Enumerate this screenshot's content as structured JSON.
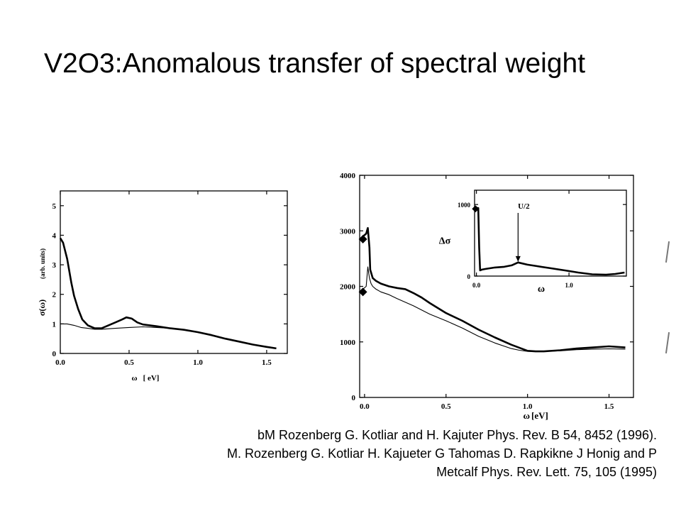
{
  "title": "V2O3:Anomalous transfer of spectral weight",
  "citation": {
    "lines": [
      "bM Rozenberg G. Kotliar and H. Kajuter Phys. Rev. B 54, 8452 (1996).",
      "M. Rozenberg G. Kotliar H. Kajueter G Tahomas D. Rapkikne J Honig and P",
      "Metcalf Phys. Rev. Lett. 75, 105 (1995)"
    ]
  },
  "chart_data": [
    {
      "id": "left",
      "type": "line",
      "xlabel_parts": [
        "ω",
        "[ eV]"
      ],
      "ylabel_parts": [
        "σ(ω)",
        "(arb. units)"
      ],
      "xlim": [
        0,
        1.65
      ],
      "ylim": [
        0,
        5.5
      ],
      "xticks": [
        0.0,
        0.5,
        1.0,
        1.5
      ],
      "xtick_labels": [
        "0.0",
        "0.5",
        "1.0",
        "1.5"
      ],
      "yticks": [
        0,
        1,
        2,
        3,
        4,
        5
      ],
      "ytick_labels": [
        "0",
        "1",
        "2",
        "3",
        "4",
        "5"
      ],
      "series": [
        {
          "style": "thick",
          "x": [
            0.0,
            0.02,
            0.05,
            0.08,
            0.1,
            0.13,
            0.16,
            0.2,
            0.25,
            0.3,
            0.35,
            0.4,
            0.45,
            0.48,
            0.52,
            0.56,
            0.6,
            0.7,
            0.8,
            0.9,
            1.0,
            1.1,
            1.2,
            1.3,
            1.4,
            1.5,
            1.57
          ],
          "y": [
            3.9,
            3.75,
            3.2,
            2.4,
            1.95,
            1.5,
            1.15,
            0.95,
            0.85,
            0.85,
            0.95,
            1.05,
            1.15,
            1.22,
            1.18,
            1.05,
            0.98,
            0.92,
            0.85,
            0.8,
            0.72,
            0.62,
            0.5,
            0.4,
            0.3,
            0.22,
            0.17
          ]
        },
        {
          "style": "thin",
          "x": [
            0.0,
            0.05,
            0.1,
            0.15,
            0.2,
            0.25,
            0.3,
            0.4,
            0.5,
            0.6,
            0.7,
            0.8,
            0.9,
            1.0,
            1.1,
            1.2,
            1.3,
            1.4,
            1.5,
            1.57
          ],
          "y": [
            1.0,
            1.0,
            0.95,
            0.88,
            0.85,
            0.82,
            0.82,
            0.85,
            0.88,
            0.9,
            0.88,
            0.85,
            0.8,
            0.72,
            0.62,
            0.5,
            0.4,
            0.3,
            0.22,
            0.17
          ]
        }
      ]
    },
    {
      "id": "right",
      "type": "line",
      "xlabel_parts": [
        "ω",
        "[eV]"
      ],
      "xlim": [
        -0.03,
        1.65
      ],
      "ylim": [
        0,
        4000
      ],
      "xticks": [
        0.0,
        0.5,
        1.0,
        1.5
      ],
      "xtick_labels": [
        "0.0",
        "0.5",
        "1.0",
        "1.5"
      ],
      "yticks": [
        0,
        1000,
        2000,
        3000,
        4000
      ],
      "ytick_labels": [
        "0",
        "1000",
        "2000",
        "3000",
        "4000"
      ],
      "markers": [
        {
          "x": -0.01,
          "y": 2850
        },
        {
          "x": -0.01,
          "y": 1900
        }
      ],
      "series": [
        {
          "style": "thick",
          "x": [
            -0.01,
            0.01,
            0.02,
            0.03,
            0.035,
            0.05,
            0.07,
            0.1,
            0.15,
            0.2,
            0.25,
            0.3,
            0.35,
            0.4,
            0.5,
            0.6,
            0.7,
            0.8,
            0.9,
            1.0,
            1.05,
            1.1,
            1.2,
            1.3,
            1.4,
            1.5,
            1.6
          ],
          "y": [
            2900,
            2950,
            3050,
            2700,
            2300,
            2150,
            2100,
            2050,
            2000,
            1970,
            1950,
            1880,
            1800,
            1700,
            1520,
            1380,
            1220,
            1080,
            950,
            840,
            830,
            830,
            850,
            880,
            900,
            920,
            900
          ]
        },
        {
          "style": "thin",
          "x": [
            -0.01,
            0.01,
            0.02,
            0.03,
            0.04,
            0.05,
            0.07,
            0.1,
            0.15,
            0.2,
            0.3,
            0.4,
            0.5,
            0.6,
            0.7,
            0.8,
            0.9,
            0.95,
            1.0,
            1.05,
            1.1,
            1.2,
            1.3,
            1.4,
            1.5,
            1.6
          ],
          "y": [
            1950,
            2000,
            2350,
            2150,
            2050,
            2000,
            1950,
            1900,
            1850,
            1780,
            1650,
            1500,
            1380,
            1250,
            1100,
            980,
            880,
            850,
            830,
            825,
            830,
            840,
            860,
            870,
            875,
            870
          ]
        }
      ]
    },
    {
      "id": "inset",
      "type": "line",
      "xlabel": "ω",
      "ylabel": "Δσ",
      "xlim": [
        -0.02,
        1.62
      ],
      "ylim": [
        0,
        1200
      ],
      "xticks": [
        0.0,
        1.0
      ],
      "xtick_labels": [
        "0.0",
        "1.0"
      ],
      "yticks": [
        0,
        1000
      ],
      "ytick_labels": [
        "0",
        "1000"
      ],
      "annotation": {
        "text": "U/2",
        "x": 0.45,
        "y": 180
      },
      "markers": [
        {
          "x": -0.01,
          "y": 940
        }
      ],
      "series": [
        {
          "style": "thick",
          "x": [
            0.0,
            0.02,
            0.03,
            0.04,
            0.06,
            0.1,
            0.15,
            0.2,
            0.3,
            0.38,
            0.45,
            0.55,
            0.65,
            0.8,
            0.95,
            1.1,
            1.25,
            1.4,
            1.5,
            1.6
          ],
          "y": [
            950,
            950,
            400,
            80,
            90,
            100,
            110,
            120,
            130,
            150,
            190,
            160,
            140,
            110,
            80,
            50,
            25,
            20,
            30,
            50
          ]
        }
      ]
    }
  ]
}
